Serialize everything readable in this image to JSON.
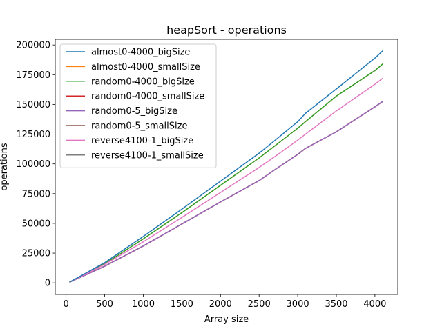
{
  "chart_data": {
    "type": "line",
    "title": "heapSort - operations",
    "xlabel": "Array size",
    "ylabel": "operations",
    "xlim": [
      -140,
      4296
    ],
    "ylim": [
      -9750,
      204750
    ],
    "xticks": [
      0,
      500,
      1000,
      1500,
      2000,
      2500,
      3000,
      3500,
      4000
    ],
    "yticks": [
      0,
      25000,
      50000,
      75000,
      100000,
      125000,
      150000,
      175000,
      200000
    ],
    "x_tick_labels": [
      "0",
      "500",
      "1000",
      "1500",
      "2000",
      "2500",
      "3000",
      "3500",
      "4000"
    ],
    "y_tick_labels": [
      "0",
      "25000",
      "50000",
      "75000",
      "100000",
      "125000",
      "150000",
      "175000",
      "200000"
    ],
    "grid": false,
    "legend_position": "top-left",
    "x": [
      50,
      500,
      1000,
      1500,
      2000,
      2500,
      2700,
      3000,
      3100,
      3500,
      4000,
      4100
    ],
    "series": [
      {
        "name": "almost0-4000_bigSize",
        "color": "#1f77b4",
        "values": [
          800,
          17000,
          39000,
          62000,
          85500,
          109000,
          119500,
          135500,
          142500,
          163000,
          189000,
          195000
        ]
      },
      {
        "name": "almost0-4000_smallSize",
        "color": "#ff7f0e",
        "values": [
          700,
          16000,
          37000,
          59000,
          82000,
          105000,
          115000,
          130000,
          135500,
          157000,
          178500,
          184000
        ]
      },
      {
        "name": "random0-4000_bigSize",
        "color": "#2ca02c",
        "values": [
          700,
          16000,
          37000,
          59000,
          82000,
          105000,
          115000,
          130000,
          135500,
          157000,
          178500,
          184000
        ]
      },
      {
        "name": "random0-4000_smallSize",
        "color": "#d62728",
        "values": [
          650,
          14000,
          31000,
          49500,
          68000,
          86000,
          95000,
          108000,
          113000,
          127000,
          148000,
          152500
        ]
      },
      {
        "name": "random0-5_bigSize",
        "color": "#9467bd",
        "values": [
          650,
          14000,
          31000,
          49500,
          68000,
          86000,
          95000,
          108000,
          113000,
          127000,
          148000,
          152500
        ]
      },
      {
        "name": "random0-5_smallSize",
        "color": "#8c564b",
        "values": [
          650,
          14000,
          31000,
          49500,
          68000,
          86000,
          95000,
          108000,
          113000,
          127000,
          148000,
          152500
        ]
      },
      {
        "name": "reverse4100-1_bigSize",
        "color": "#e377c2",
        "values": [
          650,
          15500,
          34500,
          55000,
          76000,
          97000,
          106000,
          120000,
          125000,
          144500,
          167000,
          172000
        ]
      },
      {
        "name": "reverse4100-1_smallSize",
        "color": "#7f7f7f",
        "values": [
          650,
          14000,
          31000,
          49500,
          68000,
          86000,
          95000,
          108000,
          113000,
          127000,
          148000,
          152500
        ]
      }
    ],
    "draw_order": [
      "random0-5_smallSize",
      "reverse4100-1_smallSize",
      "random0-4000_smallSize",
      "random0-5_bigSize",
      "almost0-4000_smallSize",
      "random0-4000_bigSize",
      "reverse4100-1_bigSize",
      "almost0-4000_bigSize"
    ]
  }
}
